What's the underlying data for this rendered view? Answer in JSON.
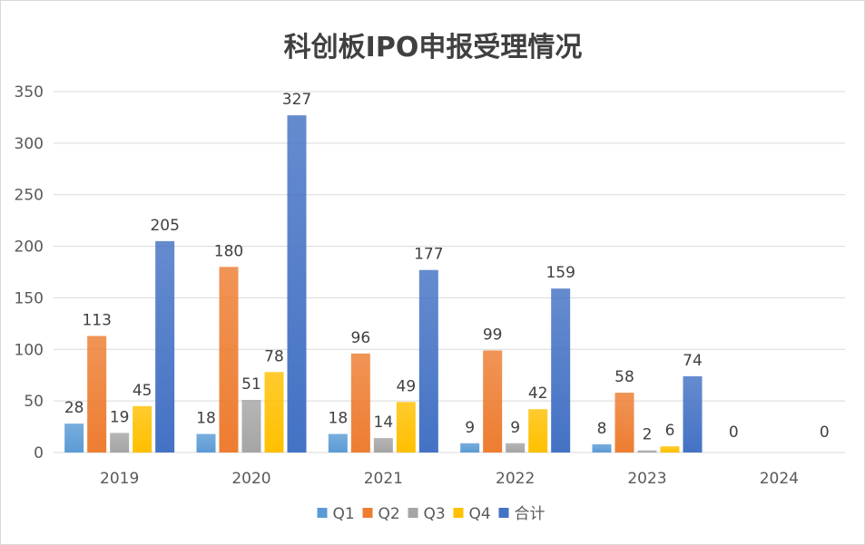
{
  "chart_data": {
    "type": "bar",
    "title": "科创板IPO申报受理情况",
    "categories": [
      "2019",
      "2020",
      "2021",
      "2022",
      "2023",
      "2024"
    ],
    "series": [
      {
        "name": "Q1",
        "values": [
          28,
          18,
          18,
          9,
          8,
          null
        ],
        "color": "#5b9bd5"
      },
      {
        "name": "Q2",
        "values": [
          113,
          180,
          96,
          99,
          58,
          null
        ],
        "color": "#ed7d31"
      },
      {
        "name": "Q3",
        "values": [
          19,
          51,
          14,
          9,
          2,
          null
        ],
        "color": "#a5a5a5"
      },
      {
        "name": "Q4",
        "values": [
          45,
          78,
          49,
          42,
          6,
          null
        ],
        "color": "#ffc000"
      },
      {
        "name": "合计",
        "values": [
          205,
          327,
          177,
          159,
          74,
          null
        ],
        "color": "#4472c4"
      }
    ],
    "labels_2024": {
      "Q1": "0",
      "合计": "0"
    },
    "ylim": [
      0,
      350
    ],
    "yticks": [
      0,
      50,
      100,
      150,
      200,
      250,
      300,
      350
    ],
    "grid": true,
    "legend": "bottom-center"
  }
}
